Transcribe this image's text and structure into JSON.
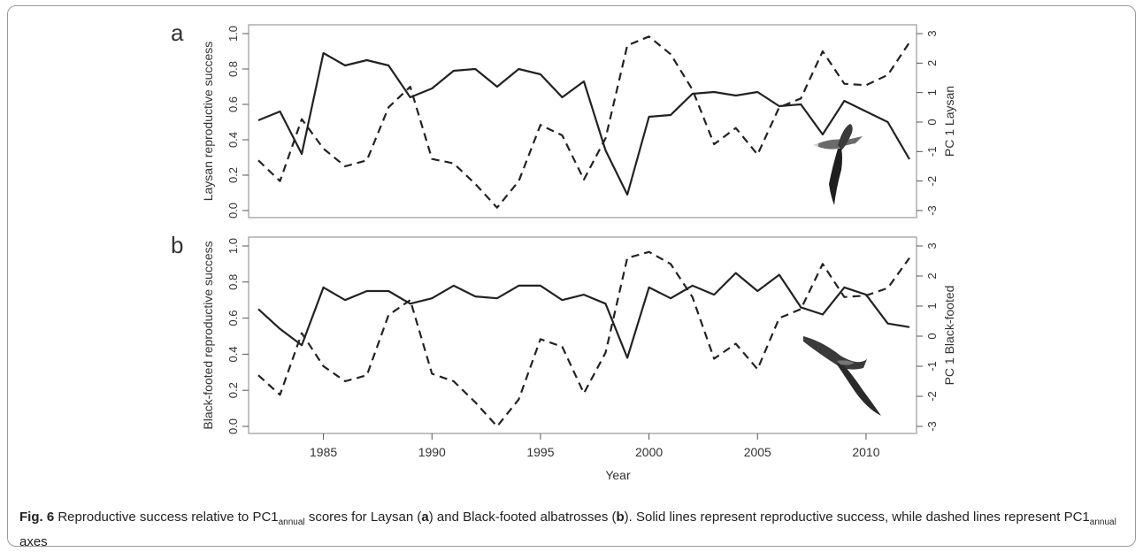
{
  "caption": {
    "fig_label": "Fig. 6",
    "t1": " Reproductive success relative to PC1",
    "sub1": "annual",
    "t2": " scores for Laysan (",
    "b_a": "a",
    "t3": ") and Black-footed albatrosses (",
    "b_b": "b",
    "t4": "). Solid lines represent reproductive success, while dashed lines represent PC1",
    "sub2": "annual",
    "t5": " axes"
  },
  "colors": {
    "line": "#222222",
    "axis": "#555555",
    "frame": "#999999"
  },
  "chart_data": [
    {
      "type": "line",
      "panel_label": "a",
      "xlabel": "",
      "ylabel": "Laysan reproductive success",
      "ylabel_right": "PC 1 Laysan",
      "xlim": [
        1982,
        2012
      ],
      "ylim": [
        0,
        1
      ],
      "ylim_right": [
        -3,
        3
      ],
      "y_ticks": [
        "0.0",
        "0.2",
        "0.4",
        "0.6",
        "0.8",
        "1.0"
      ],
      "y_ticks_right": [
        "-3",
        "-2",
        "-1",
        "0",
        "1",
        "2",
        "3"
      ],
      "image_icon": "laysan-albatross-icon",
      "series": [
        {
          "style": "solid",
          "axis": "left",
          "x": [
            1982,
            1983,
            1984,
            1985,
            1986,
            1987,
            1988,
            1989,
            1990,
            1991,
            1992,
            1993,
            1994,
            1995,
            1996,
            1997,
            1998,
            1999,
            2000,
            2001,
            2002,
            2003,
            2004,
            2005,
            2006,
            2007,
            2008,
            2009,
            2010,
            2011,
            2012
          ],
          "values": [
            0.51,
            0.56,
            0.32,
            0.89,
            0.82,
            0.85,
            0.82,
            0.64,
            0.69,
            0.79,
            0.8,
            0.7,
            0.8,
            0.77,
            0.64,
            0.73,
            0.34,
            0.09,
            0.53,
            0.54,
            0.66,
            0.67,
            0.65,
            0.67,
            0.59,
            0.6,
            0.43,
            0.62,
            0.56,
            0.5,
            0.29
          ]
        },
        {
          "style": "dashed",
          "axis": "right",
          "x": [
            1982,
            1983,
            1984,
            1985,
            1986,
            1987,
            1988,
            1989,
            1990,
            1991,
            1992,
            1993,
            1994,
            1995,
            1996,
            1997,
            1998,
            1999,
            2000,
            2001,
            2002,
            2003,
            2004,
            2005,
            2006,
            2007,
            2008,
            2009,
            2010,
            2011,
            2012
          ],
          "values": [
            -1.3,
            -2.0,
            0.1,
            -0.9,
            -1.5,
            -1.3,
            0.5,
            1.2,
            -1.25,
            -1.4,
            -2.1,
            -2.9,
            -2.0,
            -0.1,
            -0.45,
            -1.95,
            -0.55,
            2.6,
            2.9,
            2.3,
            1.1,
            -0.75,
            -0.2,
            -1.1,
            0.5,
            0.8,
            2.4,
            1.3,
            1.25,
            1.6,
            2.7
          ]
        }
      ]
    },
    {
      "type": "line",
      "panel_label": "b",
      "xlabel": "Year",
      "ylabel": "Black-footed reproductive success",
      "ylabel_right": "PC 1 Black-footed",
      "xlim": [
        1982,
        2012
      ],
      "ylim": [
        0,
        1
      ],
      "ylim_right": [
        -3,
        3
      ],
      "x_ticks": [
        "1985",
        "1990",
        "1995",
        "2000",
        "2005",
        "2010"
      ],
      "y_ticks": [
        "0.0",
        "0.2",
        "0.4",
        "0.6",
        "0.8",
        "1.0"
      ],
      "y_ticks_right": [
        "-3",
        "-2",
        "-1",
        "0",
        "1",
        "2",
        "3"
      ],
      "image_icon": "black-footed-albatross-icon",
      "series": [
        {
          "style": "solid",
          "axis": "left",
          "x": [
            1982,
            1983,
            1984,
            1985,
            1986,
            1987,
            1988,
            1989,
            1990,
            1991,
            1992,
            1993,
            1994,
            1995,
            1996,
            1997,
            1998,
            1999,
            2000,
            2001,
            2002,
            2003,
            2004,
            2005,
            2006,
            2007,
            2008,
            2009,
            2010,
            2011,
            2012
          ],
          "values": [
            0.65,
            0.54,
            0.45,
            0.77,
            0.7,
            0.75,
            0.75,
            0.68,
            0.71,
            0.78,
            0.72,
            0.71,
            0.78,
            0.78,
            0.7,
            0.73,
            0.68,
            0.38,
            0.77,
            0.71,
            0.78,
            0.73,
            0.85,
            0.75,
            0.84,
            0.66,
            0.62,
            0.77,
            0.73,
            0.57,
            0.55
          ]
        },
        {
          "style": "dashed",
          "axis": "right",
          "x": [
            1982,
            1983,
            1984,
            1985,
            1986,
            1987,
            1988,
            1989,
            1990,
            1991,
            1992,
            1993,
            1994,
            1995,
            1996,
            1997,
            1998,
            1999,
            2000,
            2001,
            2002,
            2003,
            2004,
            2005,
            2006,
            2007,
            2008,
            2009,
            2010,
            2011,
            2012
          ],
          "values": [
            -1.3,
            -1.95,
            0.1,
            -1.0,
            -1.5,
            -1.3,
            0.7,
            1.2,
            -1.25,
            -1.5,
            -2.2,
            -3.0,
            -2.1,
            -0.1,
            -0.35,
            -1.9,
            -0.55,
            2.6,
            2.8,
            2.4,
            1.3,
            -0.75,
            -0.25,
            -1.1,
            0.6,
            0.9,
            2.4,
            1.3,
            1.35,
            1.6,
            2.6
          ]
        }
      ]
    }
  ]
}
